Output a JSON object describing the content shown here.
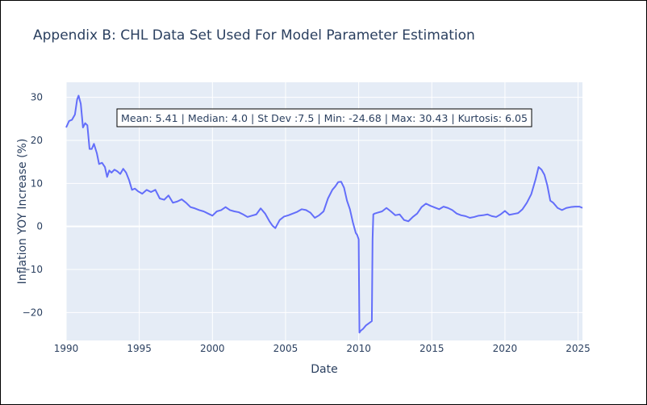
{
  "chart_data": {
    "type": "line",
    "title": "Appendix B: CHL Data Set Used For Model Parameter Estimation",
    "xlabel": "Date",
    "ylabel": "Inflation YOY Increase (%)",
    "xlim": [
      1990,
      2025.3
    ],
    "ylim": [
      -26.5,
      33.5
    ],
    "xticks": [
      1990,
      1995,
      2000,
      2005,
      2010,
      2015,
      2020,
      2025
    ],
    "yticks": [
      -20,
      -10,
      0,
      10,
      20,
      30
    ],
    "grid": true,
    "legend": "none",
    "annotation": "Mean: 5.41 | Median: 4.0 | St Dev :7.5 | Min: -24.68 | Max: 30.43 | Kurtosis: 6.05",
    "series": [
      {
        "color": "#636efa",
        "x": [
          1990.0,
          1990.2,
          1990.4,
          1990.6,
          1990.75,
          1990.85,
          1991.0,
          1991.15,
          1991.3,
          1991.45,
          1991.6,
          1991.75,
          1991.9,
          1992.1,
          1992.25,
          1992.45,
          1992.65,
          1992.8,
          1992.95,
          1993.1,
          1993.3,
          1993.5,
          1993.7,
          1993.9,
          1994.1,
          1994.3,
          1994.5,
          1994.7,
          1994.9,
          1995.2,
          1995.5,
          1995.8,
          1996.1,
          1996.4,
          1996.7,
          1997.0,
          1997.3,
          1997.6,
          1997.9,
          1998.2,
          1998.5,
          1998.8,
          1999.1,
          1999.4,
          1999.7,
          2000.0,
          2000.3,
          2000.6,
          2000.9,
          2001.2,
          2001.5,
          2001.8,
          2002.1,
          2002.4,
          2002.7,
          2003.0,
          2003.3,
          2003.6,
          2003.9,
          2004.1,
          2004.3,
          2004.6,
          2004.9,
          2005.2,
          2005.5,
          2005.8,
          2006.1,
          2006.4,
          2006.7,
          2007.0,
          2007.3,
          2007.6,
          2007.9,
          2008.2,
          2008.4,
          2008.6,
          2008.8,
          2009.0,
          2009.2,
          2009.4,
          2009.6,
          2009.8,
          2009.9,
          2010.0,
          2010.05,
          2010.15,
          2010.3,
          2010.5,
          2010.7,
          2010.9,
          2010.95,
          2011.0,
          2011.1,
          2011.3,
          2011.6,
          2011.9,
          2012.2,
          2012.5,
          2012.8,
          2013.1,
          2013.4,
          2013.7,
          2014.0,
          2014.3,
          2014.6,
          2014.9,
          2015.2,
          2015.5,
          2015.8,
          2016.1,
          2016.4,
          2016.7,
          2017.0,
          2017.3,
          2017.6,
          2017.9,
          2018.2,
          2018.5,
          2018.8,
          2019.1,
          2019.4,
          2019.7,
          2020.0,
          2020.3,
          2020.6,
          2020.9,
          2021.2,
          2021.5,
          2021.8,
          2022.1,
          2022.3,
          2022.5,
          2022.7,
          2022.9,
          2023.1,
          2023.3,
          2023.6,
          2023.9,
          2024.2,
          2024.5,
          2024.8,
          2025.1,
          2025.3
        ],
        "y": [
          23.0,
          24.5,
          24.8,
          26.0,
          29.5,
          30.4,
          28.5,
          23.0,
          24.0,
          23.5,
          18.0,
          18.0,
          19.2,
          17.0,
          14.5,
          14.8,
          13.8,
          11.5,
          13.0,
          12.5,
          13.2,
          12.8,
          12.2,
          13.4,
          12.5,
          10.8,
          8.5,
          8.8,
          8.2,
          7.6,
          8.5,
          8.0,
          8.5,
          6.5,
          6.2,
          7.2,
          5.5,
          5.8,
          6.3,
          5.5,
          4.5,
          4.2,
          3.8,
          3.5,
          3.0,
          2.5,
          3.5,
          3.8,
          4.5,
          3.8,
          3.5,
          3.3,
          2.8,
          2.2,
          2.5,
          2.8,
          4.2,
          3.0,
          1.2,
          0.2,
          -0.4,
          1.5,
          2.3,
          2.6,
          3.0,
          3.4,
          4.0,
          3.8,
          3.2,
          2.0,
          2.6,
          3.5,
          6.5,
          8.5,
          9.3,
          10.3,
          10.4,
          9.0,
          6.0,
          4.0,
          1.0,
          -1.5,
          -2.0,
          -3.0,
          -24.68,
          -24.2,
          -23.8,
          -23.0,
          -22.5,
          -22.0,
          -3.0,
          2.8,
          3.0,
          3.2,
          3.5,
          4.3,
          3.5,
          2.6,
          2.8,
          1.5,
          1.2,
          2.2,
          3.0,
          4.5,
          5.3,
          4.8,
          4.4,
          4.0,
          4.6,
          4.3,
          3.8,
          3.0,
          2.6,
          2.4,
          2.0,
          2.2,
          2.5,
          2.6,
          2.8,
          2.4,
          2.2,
          2.8,
          3.6,
          2.7,
          2.9,
          3.1,
          4.0,
          5.5,
          7.5,
          11.0,
          13.8,
          13.2,
          12.0,
          9.5,
          6.0,
          5.5,
          4.3,
          3.8,
          4.3,
          4.5,
          4.6,
          4.6,
          4.3
        ]
      }
    ]
  }
}
